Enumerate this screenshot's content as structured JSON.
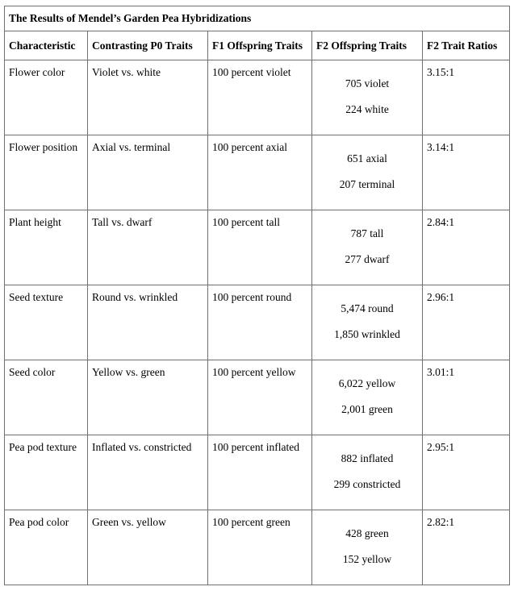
{
  "title": "The Results of Mendel’s Garden Pea Hybridizations",
  "headers": [
    "Characteristic",
    "Contrasting P0 Traits",
    "F1 Offspring Traits",
    "F2 Offspring Traits",
    "F2 Trait Ratios"
  ],
  "rows": [
    {
      "characteristic": "Flower color",
      "p0": "Violet vs. white",
      "f1": "100 percent violet",
      "f2a": "705 violet",
      "f2b": "224 white",
      "ratio": "3.15:1"
    },
    {
      "characteristic": "Flower position",
      "p0": "Axial vs. terminal",
      "f1": "100 percent axial",
      "f2a": "651 axial",
      "f2b": "207 terminal",
      "ratio": "3.14:1"
    },
    {
      "characteristic": "Plant height",
      "p0": "Tall vs. dwarf",
      "f1": "100 percent tall",
      "f2a": "787 tall",
      "f2b": "277 dwarf",
      "ratio": "2.84:1"
    },
    {
      "characteristic": "Seed texture",
      "p0": "Round vs. wrinkled",
      "f1": "100 percent round",
      "f2a": "5,474 round",
      "f2b": "1,850 wrinkled",
      "ratio": "2.96:1"
    },
    {
      "characteristic": "Seed color",
      "p0": "Yellow vs. green",
      "f1": "100 percent yellow",
      "f2a": "6,022 yellow",
      "f2b": "2,001 green",
      "ratio": "3.01:1"
    },
    {
      "characteristic": "Pea pod texture",
      "p0": "Inflated vs. constricted",
      "f1": "100 percent inflated",
      "f2a": "882 inflated",
      "f2b": "299 constricted",
      "ratio": "2.95:1"
    },
    {
      "characteristic": "Pea pod color",
      "p0": "Green vs. yellow",
      "f1": "100 percent green",
      "f2a": "428 green",
      "f2b": "152 yellow",
      "ratio": "2.82:1"
    }
  ]
}
